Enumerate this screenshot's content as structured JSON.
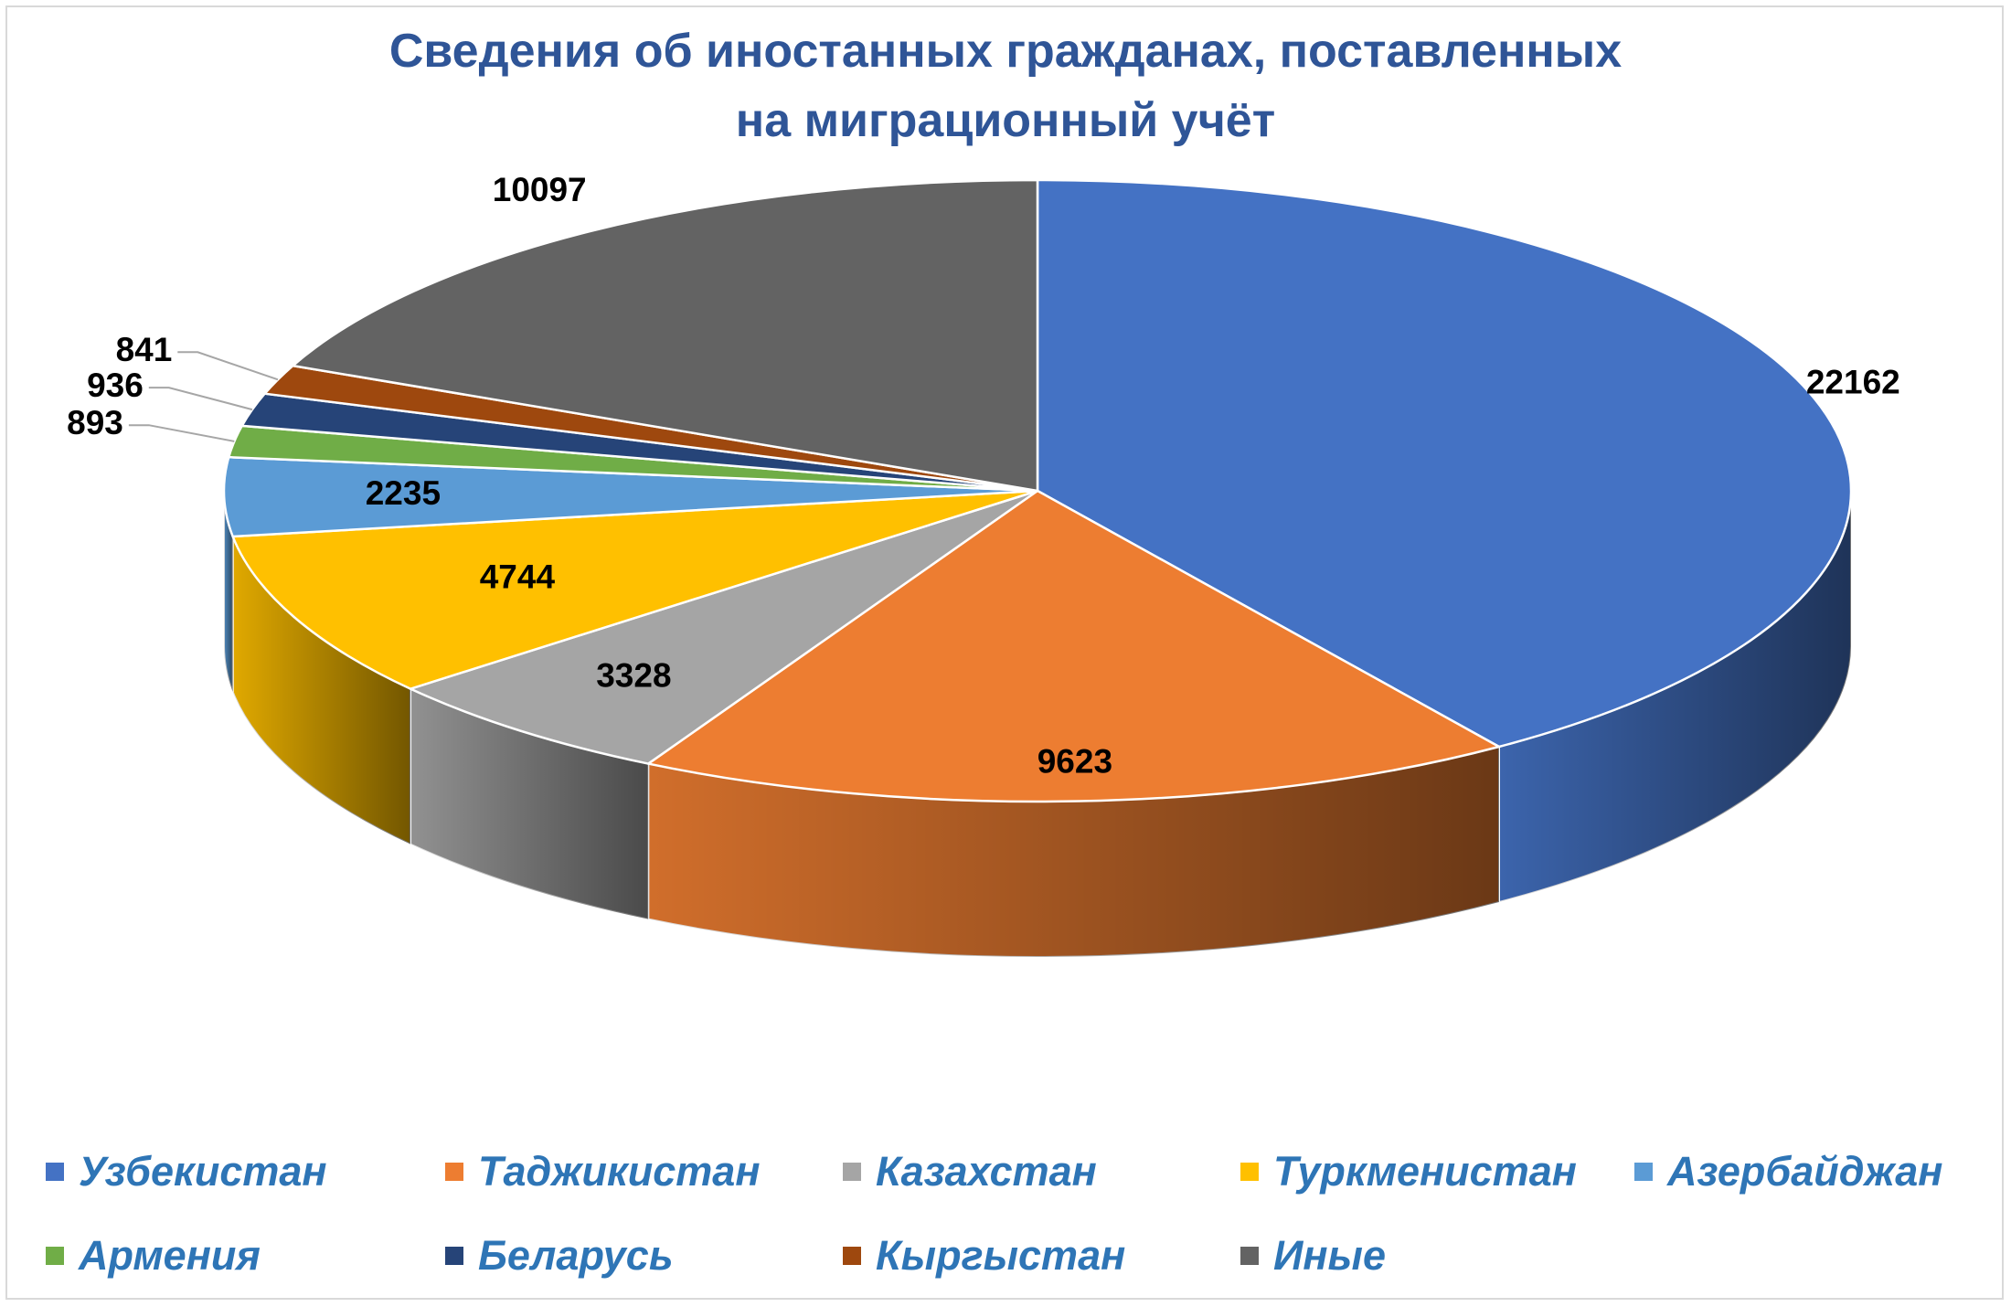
{
  "chart_data": {
    "type": "pie",
    "title_lines": [
      "Сведения об иностанных гражданах, поставленных",
      "на миграционный учёт"
    ],
    "categories": [
      "Узбекистан",
      "Таджикистан",
      "Казахстан",
      "Туркменистан",
      "Азербайджан",
      "Армения",
      "Беларусь",
      "Кыргыстан",
      "Иные"
    ],
    "values": [
      22162,
      9623,
      3328,
      4744,
      2235,
      893,
      936,
      841,
      10097
    ],
    "value_labels": [
      "22162",
      "9623",
      "3328",
      "4744",
      "2235",
      "893",
      "936",
      "841",
      "10097"
    ],
    "colors": [
      "#4472c4",
      "#ed7d31",
      "#a5a5a5",
      "#ffc000",
      "#5b9bd5",
      "#70ad47",
      "#264478",
      "#9e480e",
      "#636363"
    ],
    "style": "3d-pie",
    "legend_position": "bottom"
  }
}
